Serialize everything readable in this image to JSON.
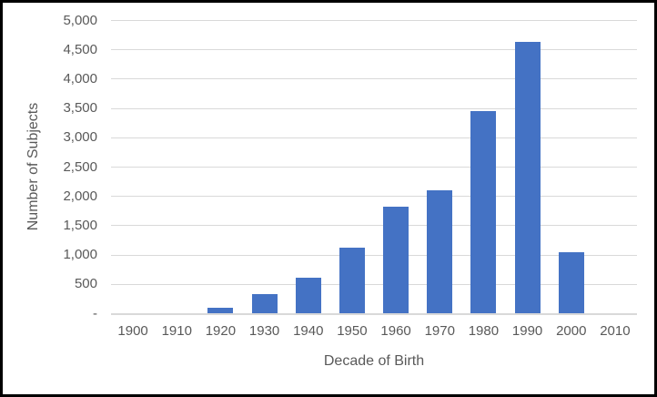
{
  "chart_data": {
    "type": "bar",
    "title": "",
    "xlabel": "Decade of Birth",
    "ylabel": "Number of Subjects",
    "categories": [
      "1900",
      "1910",
      "1920",
      "1930",
      "1940",
      "1950",
      "1960",
      "1970",
      "1980",
      "1990",
      "2000",
      "2010"
    ],
    "values": [
      0,
      0,
      100,
      340,
      620,
      1130,
      1820,
      2100,
      3450,
      4640,
      1050,
      0
    ],
    "ylim": [
      0,
      5000
    ],
    "y_tick_interval": 500,
    "y_tick_labels": [
      "-",
      "500",
      "1,000",
      "1,500",
      "2,000",
      "2,500",
      "3,000",
      "3,500",
      "4,000",
      "4,500",
      "5,000"
    ],
    "grid": true,
    "legend": false,
    "colors": {
      "bar": "#4472C4",
      "gridline": "#D9D9D9",
      "axis_line": "#D9D9D9",
      "text": "#595959",
      "background": "#FFFFFF",
      "frame_border": "#000000"
    }
  }
}
